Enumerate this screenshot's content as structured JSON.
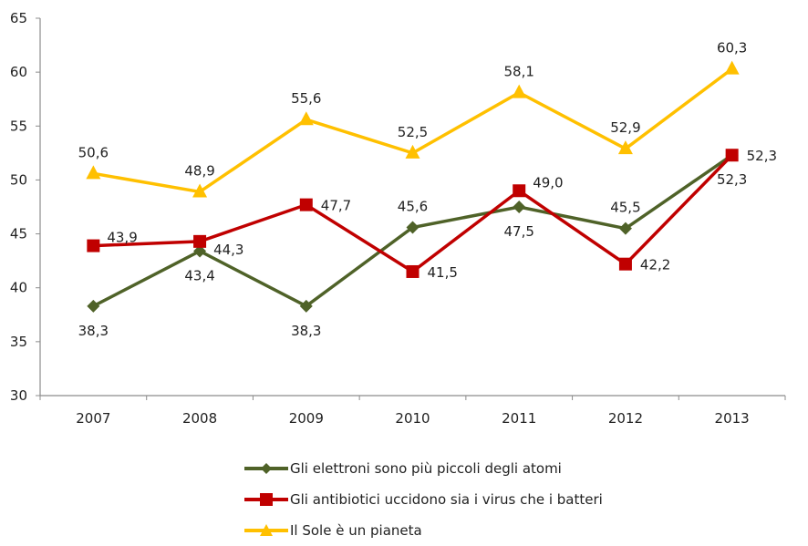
{
  "chart_data": {
    "type": "line",
    "title": "",
    "xlabel": "",
    "ylabel": "",
    "categories": [
      "2007",
      "2008",
      "2009",
      "2010",
      "2011",
      "2012",
      "2013"
    ],
    "ylim": [
      30,
      65
    ],
    "yticks": [
      30,
      35,
      40,
      45,
      50,
      55,
      60,
      65
    ],
    "ytick_labels": [
      "30",
      "35",
      "40",
      "45",
      "50",
      "55",
      "60",
      "65"
    ],
    "grid": false,
    "legend_position": "bottom",
    "series": [
      {
        "name": "Gli elettroni sono più piccoli degli atomi",
        "color": "#4F6228",
        "marker": "diamond",
        "values": [
          38.3,
          43.4,
          38.3,
          45.6,
          47.5,
          45.5,
          52.3
        ],
        "labels": [
          "38,3",
          "43,4",
          "38,3",
          "45,6",
          "47,5",
          "45,5",
          "52,3"
        ],
        "label_pos": [
          "below",
          "below",
          "below",
          "above",
          "below",
          "above",
          "below"
        ]
      },
      {
        "name": "Gli antibiotici uccidono sia i virus che i batteri",
        "color": "#C00000",
        "marker": "square",
        "values": [
          43.9,
          44.3,
          47.7,
          41.5,
          49.0,
          42.2,
          52.3
        ],
        "labels": [
          "43,9",
          "44,3",
          "47,7",
          "41,5",
          "49,0",
          "42,2",
          "52,3"
        ],
        "label_pos": [
          "right-up",
          "right-down",
          "right",
          "right",
          "right-up",
          "right",
          "right"
        ]
      },
      {
        "name": "Il Sole è un pianeta",
        "color": "#FFC000",
        "marker": "triangle",
        "values": [
          50.6,
          48.9,
          55.6,
          52.5,
          58.1,
          52.9,
          60.3
        ],
        "labels": [
          "50,6",
          "48,9",
          "55,6",
          "52,5",
          "58,1",
          "52,9",
          "60,3"
        ],
        "label_pos": [
          "above",
          "above",
          "above",
          "above",
          "above",
          "above",
          "above"
        ]
      }
    ]
  }
}
